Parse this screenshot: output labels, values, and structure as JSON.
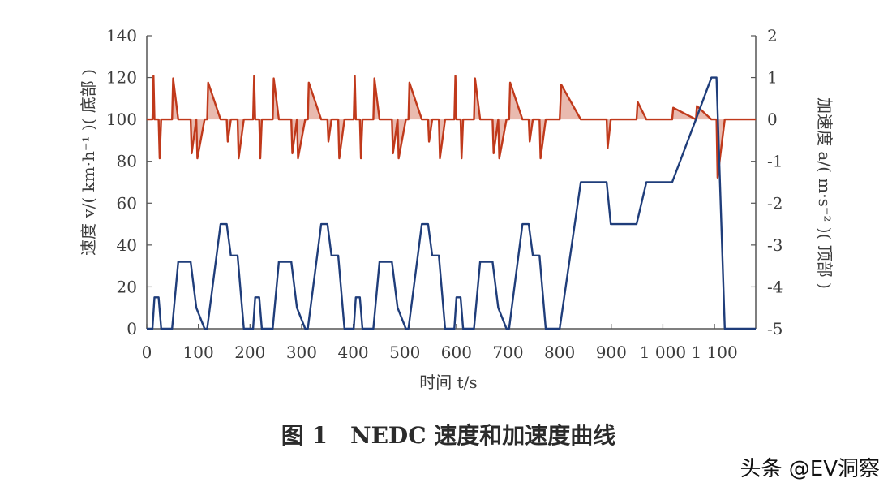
{
  "chart_data": {
    "type": "line",
    "xlabel": "时间 t/s",
    "ylabel_left": "速度 v/( km·h⁻¹ )( 底部 )",
    "ylabel_right": "加速度 a/( m·s⁻² )( 顶部 )",
    "xlim": [
      0,
      1180
    ],
    "ylim_left": [
      0,
      140
    ],
    "ylim_right": [
      -5,
      2
    ],
    "x_ticks": [
      0,
      100,
      200,
      300,
      400,
      500,
      600,
      700,
      800,
      900,
      1000,
      1100
    ],
    "x_tick_labels": [
      "0",
      "100",
      "200",
      "300",
      "400",
      "500",
      "600",
      "700",
      "800",
      "900",
      "1 000",
      "1 100"
    ],
    "y_left_ticks": [
      0,
      20,
      40,
      60,
      80,
      100,
      120,
      140
    ],
    "y_right_ticks": [
      -5,
      -4,
      -3,
      -2,
      -1,
      0,
      1,
      2
    ],
    "y_right_tick_labels": [
      "-5",
      "-4",
      "-3",
      "-2",
      "-1",
      "0",
      "1",
      "2"
    ],
    "grid": false,
    "colors": {
      "speed": "#1f3d7a",
      "acceleration": "#c0391b",
      "axis": "#555555"
    },
    "speed_cycle": {
      "x": [
        0,
        11,
        15,
        23,
        28,
        49,
        61,
        85,
        96,
        112,
        117,
        143,
        155,
        163,
        176,
        188,
        195
      ],
      "y": [
        0,
        0,
        15,
        15,
        0,
        0,
        32,
        32,
        10,
        0,
        0,
        50,
        50,
        35,
        35,
        0,
        0
      ]
    },
    "speed_cycle_starts": [
      0,
      195,
      390,
      585
    ],
    "speed_eudc": {
      "x": [
        780,
        800,
        841,
        891,
        899,
        949,
        968,
        1018,
        1064,
        1094,
        1104,
        1120,
        1180
      ],
      "y": [
        0,
        0,
        70,
        70,
        50,
        50,
        70,
        70,
        100,
        120,
        120,
        0,
        0
      ]
    },
    "accel_cycle": {
      "x": [
        0,
        11,
        13,
        15,
        23,
        25,
        28,
        49,
        51,
        61,
        85,
        87,
        96,
        98,
        112,
        117,
        119,
        143,
        155,
        157,
        163,
        176,
        178,
        188,
        195
      ],
      "y": [
        0,
        0,
        1.04,
        0,
        0,
        -0.93,
        0,
        0,
        0.98,
        0,
        0,
        -0.81,
        0,
        -0.93,
        0,
        0,
        0.88,
        0,
        0,
        -0.53,
        0,
        0,
        -0.93,
        0,
        0
      ]
    },
    "accel_eudc": {
      "x": [
        780,
        800,
        803,
        841,
        891,
        893,
        899,
        949,
        951,
        968,
        1018,
        1020,
        1064,
        1066,
        1094,
        1104,
        1106,
        1120,
        1180
      ],
      "y": [
        0,
        0,
        0.83,
        0,
        0,
        -0.69,
        0,
        0,
        0.42,
        0,
        0,
        0.28,
        0,
        0.32,
        0,
        0,
        -1.39,
        0,
        0
      ]
    }
  },
  "caption": "图 1　NEDC 速度和加速度曲线",
  "watermark": "头条 @EV洞察"
}
